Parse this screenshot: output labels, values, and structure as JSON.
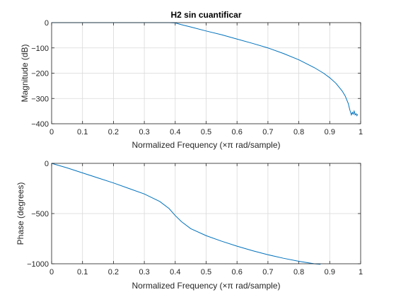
{
  "chart_data": [
    {
      "type": "line",
      "title": "H2 sin cuantificar",
      "xlabel": "Normalized Frequency  (×π rad/sample)",
      "ylabel": "Magnitude (dB)",
      "xlim": [
        0,
        1
      ],
      "ylim": [
        -400,
        0
      ],
      "xticks": [
        "0",
        "0.1",
        "0.2",
        "0.3",
        "0.4",
        "0.5",
        "0.6",
        "0.7",
        "0.8",
        "0.9",
        "1"
      ],
      "yticks": [
        "0",
        "−100",
        "−200",
        "−300",
        "−400"
      ],
      "grid": true,
      "color": "#0072bd",
      "series": [
        {
          "x": [
            0,
            0.05,
            0.1,
            0.15,
            0.2,
            0.25,
            0.3,
            0.35,
            0.38,
            0.4,
            0.42,
            0.45,
            0.5,
            0.55,
            0.6,
            0.65,
            0.7,
            0.75,
            0.8,
            0.85,
            0.88,
            0.9,
            0.92,
            0.94,
            0.95,
            0.96,
            0.965,
            0.97,
            0.973,
            0.976,
            0.979,
            0.982,
            0.985,
            0.988,
            0.99
          ],
          "y": [
            0,
            0,
            0,
            0,
            0,
            0,
            0,
            0,
            0,
            -1,
            -8,
            -17,
            -33,
            -48,
            -65,
            -82,
            -100,
            -122,
            -147,
            -178,
            -200,
            -218,
            -240,
            -270,
            -290,
            -320,
            -345,
            -365,
            -355,
            -362,
            -350,
            -365,
            -360,
            -368,
            -362
          ]
        }
      ]
    },
    {
      "type": "line",
      "title": "",
      "xlabel": "Normalized Frequency  (×π rad/sample)",
      "ylabel": "Phase (degrees)",
      "xlim": [
        0,
        1
      ],
      "ylim": [
        -1000,
        0
      ],
      "xticks": [
        "0",
        "0.1",
        "0.2",
        "0.3",
        "0.4",
        "0.5",
        "0.6",
        "0.7",
        "0.8",
        "0.9",
        "1"
      ],
      "yticks": [
        "0",
        "−500",
        "−1000"
      ],
      "grid": true,
      "color": "#0072bd",
      "series": [
        {
          "x": [
            0,
            0.05,
            0.1,
            0.15,
            0.2,
            0.25,
            0.3,
            0.35,
            0.38,
            0.4,
            0.42,
            0.45,
            0.5,
            0.55,
            0.6,
            0.65,
            0.7,
            0.75,
            0.8,
            0.85,
            0.87
          ],
          "y": [
            0,
            -45,
            -95,
            -145,
            -195,
            -250,
            -305,
            -380,
            -450,
            -520,
            -580,
            -650,
            -720,
            -775,
            -825,
            -870,
            -910,
            -945,
            -975,
            -1000,
            -1005
          ]
        }
      ]
    }
  ]
}
